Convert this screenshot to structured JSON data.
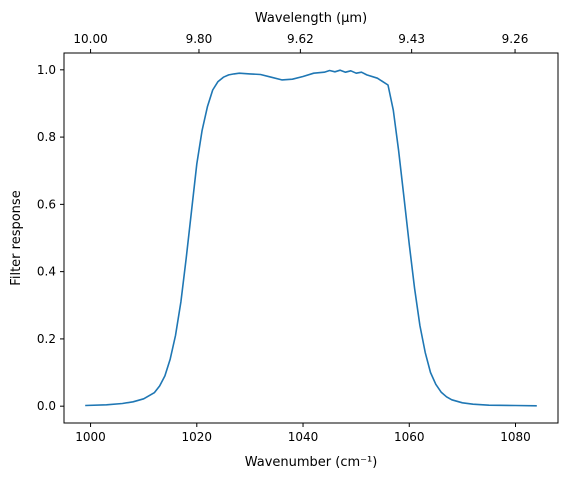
{
  "chart_data": {
    "type": "line",
    "xlabel": "Wavenumber (cm⁻¹)",
    "ylabel": "Filter response",
    "top_xlabel": "Wavelength (μm)",
    "xlim": [
      995,
      1088
    ],
    "ylim": [
      -0.05,
      1.05
    ],
    "x_ticks": [
      1000,
      1020,
      1040,
      1060,
      1080
    ],
    "x_tick_labels": [
      "1000",
      "1020",
      "1040",
      "1060",
      "1080"
    ],
    "y_ticks": [
      0.0,
      0.2,
      0.4,
      0.6,
      0.8,
      1.0
    ],
    "y_tick_labels": [
      "0.0",
      "0.2",
      "0.4",
      "0.6",
      "0.8",
      "1.0"
    ],
    "top_ticks": [
      {
        "wavelength_um": 10.0,
        "label": "10.00"
      },
      {
        "wavelength_um": 9.8,
        "label": "9.80"
      },
      {
        "wavelength_um": 9.62,
        "label": "9.62"
      },
      {
        "wavelength_um": 9.43,
        "label": "9.43"
      },
      {
        "wavelength_um": 9.26,
        "label": "9.26"
      }
    ],
    "grid": false,
    "series": [
      {
        "color": "#1f77b4",
        "x": [
          999,
          1003,
          1006,
          1008,
          1010,
          1012,
          1013,
          1014,
          1015,
          1016,
          1017,
          1018,
          1019,
          1020,
          1021,
          1022,
          1023,
          1024,
          1025,
          1026,
          1027,
          1028,
          1030,
          1032,
          1034,
          1036,
          1038,
          1040,
          1042,
          1044,
          1045,
          1046,
          1047,
          1048,
          1049,
          1050,
          1051,
          1052,
          1054,
          1056,
          1057,
          1058,
          1059,
          1060,
          1061,
          1062,
          1063,
          1064,
          1065,
          1066,
          1067,
          1068,
          1070,
          1072,
          1075,
          1080,
          1084
        ],
        "y": [
          0.002,
          0.004,
          0.008,
          0.013,
          0.022,
          0.04,
          0.06,
          0.09,
          0.14,
          0.21,
          0.31,
          0.44,
          0.58,
          0.72,
          0.82,
          0.89,
          0.94,
          0.965,
          0.978,
          0.985,
          0.988,
          0.99,
          0.988,
          0.986,
          0.978,
          0.97,
          0.972,
          0.98,
          0.99,
          0.993,
          0.998,
          0.994,
          0.999,
          0.993,
          0.997,
          0.99,
          0.993,
          0.985,
          0.975,
          0.955,
          0.88,
          0.76,
          0.62,
          0.48,
          0.35,
          0.24,
          0.16,
          0.1,
          0.065,
          0.042,
          0.028,
          0.019,
          0.01,
          0.006,
          0.003,
          0.002,
          0.001
        ]
      }
    ]
  }
}
